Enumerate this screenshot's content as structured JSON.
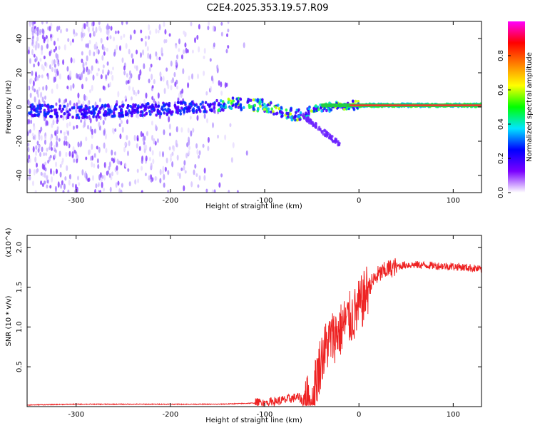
{
  "title": "C2E4.2025.353.19.57.R09",
  "chart_data": [
    {
      "type": "heatmap",
      "xlabel": "Height of straight line (km)",
      "ylabel": "Frequency (Hz)",
      "xlim": [
        -352,
        130
      ],
      "ylim": [
        -50,
        50
      ],
      "xticks": [
        -300,
        -200,
        -100,
        0,
        100
      ],
      "yticks": [
        -40,
        -20,
        0,
        20,
        40
      ],
      "trace": {
        "description_points_x": [
          -350,
          -300,
          -250,
          -200,
          -150,
          -130,
          -100,
          -80,
          -65,
          -50,
          -40,
          -30,
          -20,
          0,
          50,
          130
        ],
        "description_points_y": [
          -2,
          -3,
          -2,
          -1,
          1,
          2,
          1,
          -3,
          -5,
          -2,
          -1,
          0,
          1,
          1,
          1,
          1
        ]
      },
      "colorbar": {
        "label": "Normalized spectral amplitude",
        "range": [
          0,
          1
        ],
        "ticks": [
          0.0,
          0.2,
          0.4,
          0.6,
          0.8
        ],
        "tick_labels": [
          "0.0",
          "0.2",
          "0.4",
          "0.6",
          "0.8"
        ],
        "colors": [
          "#ffffff",
          "#7a00ff",
          "#0000ff",
          "#00e5ff",
          "#00ff00",
          "#ffff00",
          "#ff8000",
          "#ff0000",
          "#ff00ff"
        ]
      }
    },
    {
      "type": "line",
      "xlabel": "Height of straight line (km)",
      "ylabel": "SNR (10 * v/v)",
      "ylabel_scale": "(x10^4)",
      "xlim": [
        -352,
        130
      ],
      "ylim": [
        0,
        2.15
      ],
      "xticks": [
        -300,
        -200,
        -100,
        0,
        100
      ],
      "yticks": [
        0.5,
        1.0,
        1.5,
        2.0
      ],
      "ytick_labels": [
        "0.5",
        "1.0",
        "1.5",
        "2.0"
      ],
      "series": [
        {
          "name": "SNR",
          "color": "#ee2222",
          "x": [
            -352,
            -300,
            -250,
            -200,
            -150,
            -120,
            -100,
            -80,
            -65,
            -55,
            -50,
            -45,
            -40,
            -35,
            -30,
            -25,
            -20,
            -15,
            -10,
            -5,
            0,
            5,
            10,
            20,
            30,
            40,
            50,
            60,
            80,
            100,
            120,
            130
          ],
          "y": [
            0.02,
            0.03,
            0.03,
            0.03,
            0.03,
            0.04,
            0.05,
            0.08,
            0.12,
            0.05,
            0.1,
            0.35,
            0.6,
            0.75,
            0.85,
            0.9,
            0.95,
            1.05,
            1.1,
            1.15,
            1.25,
            1.35,
            1.5,
            1.65,
            1.72,
            1.76,
            1.78,
            1.78,
            1.77,
            1.76,
            1.74,
            1.72
          ]
        }
      ]
    }
  ]
}
